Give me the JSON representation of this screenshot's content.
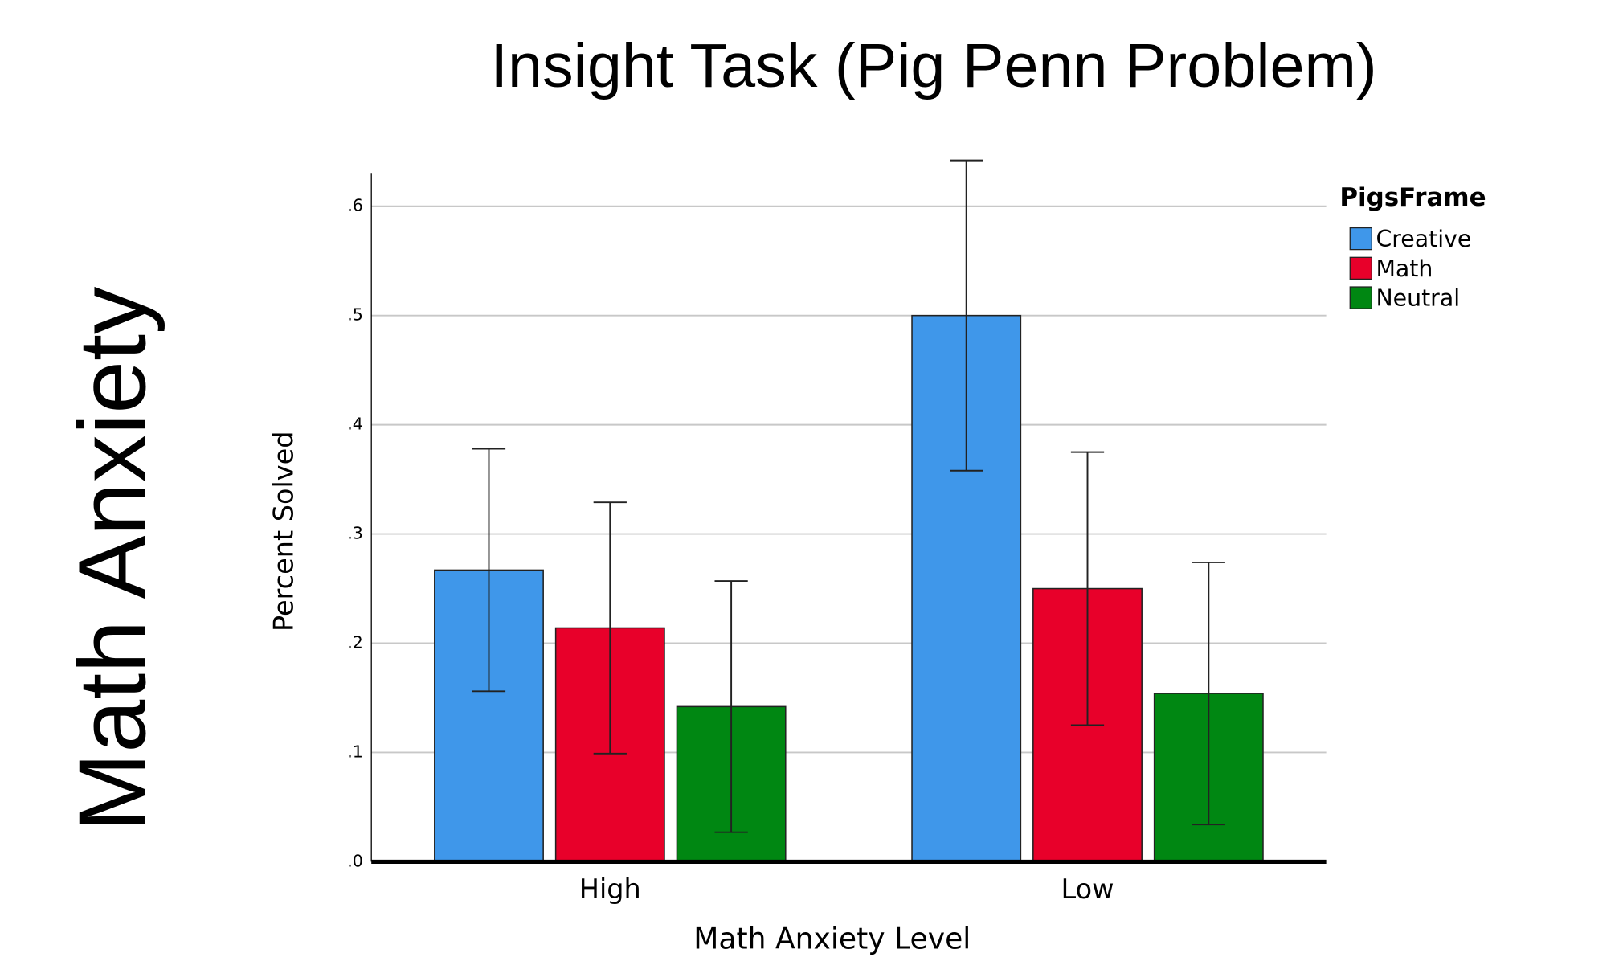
{
  "chart_data": {
    "type": "bar",
    "title": "Insight Task (Pig Penn Problem)",
    "side_label": "Math Anxiety",
    "ylabel": "Percent Solved",
    "xlabel": "Math Anxiety Level",
    "legend_title": "PigsFrame",
    "legend": "top-right",
    "grid": true,
    "categories": [
      "High",
      "Low"
    ],
    "series": [
      {
        "name": "Creative",
        "color": "#3f97ea",
        "values": [
          0.267,
          0.5
        ],
        "errors": [
          0.111,
          0.142
        ]
      },
      {
        "name": "Math",
        "color": "#e8002a",
        "values": [
          0.214,
          0.25
        ],
        "errors": [
          0.115,
          0.125
        ]
      },
      {
        "name": "Neutral",
        "color": "#008712",
        "values": [
          0.142,
          0.154
        ],
        "errors": [
          0.115,
          0.12
        ]
      }
    ],
    "ylim": [
      0,
      0.64
    ],
    "yticks": [
      {
        "value": 0,
        "label": ".0"
      },
      {
        "value": 0.1,
        "label": ".1"
      },
      {
        "value": 0.2,
        "label": ".2"
      },
      {
        "value": 0.3,
        "label": ".3"
      },
      {
        "value": 0.4,
        "label": ".4"
      },
      {
        "value": 0.5,
        "label": ".5"
      },
      {
        "value": 0.6,
        "label": ".6"
      }
    ]
  }
}
